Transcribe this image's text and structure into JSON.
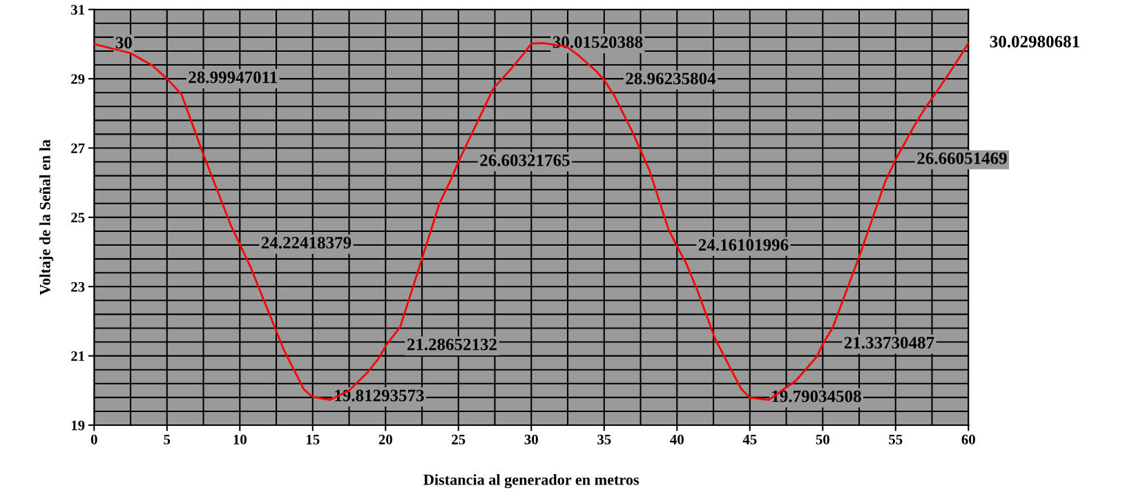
{
  "chart_data": {
    "type": "line",
    "xlabel": "Distancia al generador en metros",
    "ylabel": "Voltaje de la Señal en la",
    "xlim": [
      0,
      60
    ],
    "xticks": [
      0,
      5,
      10,
      15,
      20,
      25,
      30,
      35,
      40,
      45,
      50,
      55,
      60
    ],
    "ylim": [
      19,
      31
    ],
    "yticks": [
      19,
      21,
      23,
      25,
      27,
      29,
      31
    ],
    "grid": true,
    "marker": "none",
    "line_style": "solid",
    "series": [
      {
        "color": "#ff0000",
        "x": [
          0,
          2.5,
          4,
          5,
          6,
          7.5,
          9.4,
          10,
          10.7,
          12,
          13,
          14.4,
          15,
          16.2,
          17.5,
          18.8,
          19.55,
          20,
          21,
          22.6,
          23.7,
          24.5,
          25,
          27.4,
          28.6,
          29.5,
          30,
          30.8,
          32.4,
          33.2,
          34.5,
          35,
          35.7,
          36.9,
          38.1,
          39.4,
          40,
          40.6,
          41.4,
          42.6,
          43.3,
          44.4,
          45,
          46.3,
          48.2,
          49.6,
          50,
          50.7,
          52.5,
          54.3,
          55,
          56.2,
          56.9,
          57.7,
          59,
          60
        ],
        "values": [
          30,
          29.74,
          29.38,
          28.99947011,
          28.55,
          26.81,
          24.75,
          24.22418379,
          23.6,
          22.24,
          21.19,
          20.03,
          19.81293573,
          19.73,
          20.0,
          20.54,
          20.94,
          21.28652132,
          21.83,
          23.94,
          25.4,
          26.1,
          26.60321765,
          28.72,
          29.28,
          29.73,
          30.01520388,
          30.03,
          29.93,
          29.69,
          29.2,
          28.96235804,
          28.51,
          27.5,
          26.37,
          24.67,
          24.16101996,
          23.7,
          22.89,
          21.51,
          20.94,
          20.05,
          19.79034508,
          19.73,
          20.3,
          20.98,
          21.33730487,
          21.83,
          23.86,
          26.04,
          26.66051469,
          27.58,
          28.07,
          28.55,
          29.36,
          30.02980681
        ],
        "value_labels": [
          "30",
          null,
          null,
          "28.99947011",
          null,
          null,
          null,
          "24.22418379",
          null,
          null,
          null,
          null,
          "19.81293573",
          null,
          null,
          null,
          null,
          "21.28652132",
          null,
          null,
          null,
          null,
          "26.60321765",
          null,
          null,
          null,
          "30.01520388",
          null,
          null,
          null,
          null,
          "28.96235804",
          null,
          null,
          null,
          null,
          "24.16101996",
          null,
          null,
          null,
          null,
          null,
          "19.79034508",
          null,
          null,
          null,
          "21.33730487",
          null,
          null,
          null,
          "26.66051469",
          null,
          null,
          null,
          null,
          "30.02980681"
        ]
      }
    ]
  }
}
